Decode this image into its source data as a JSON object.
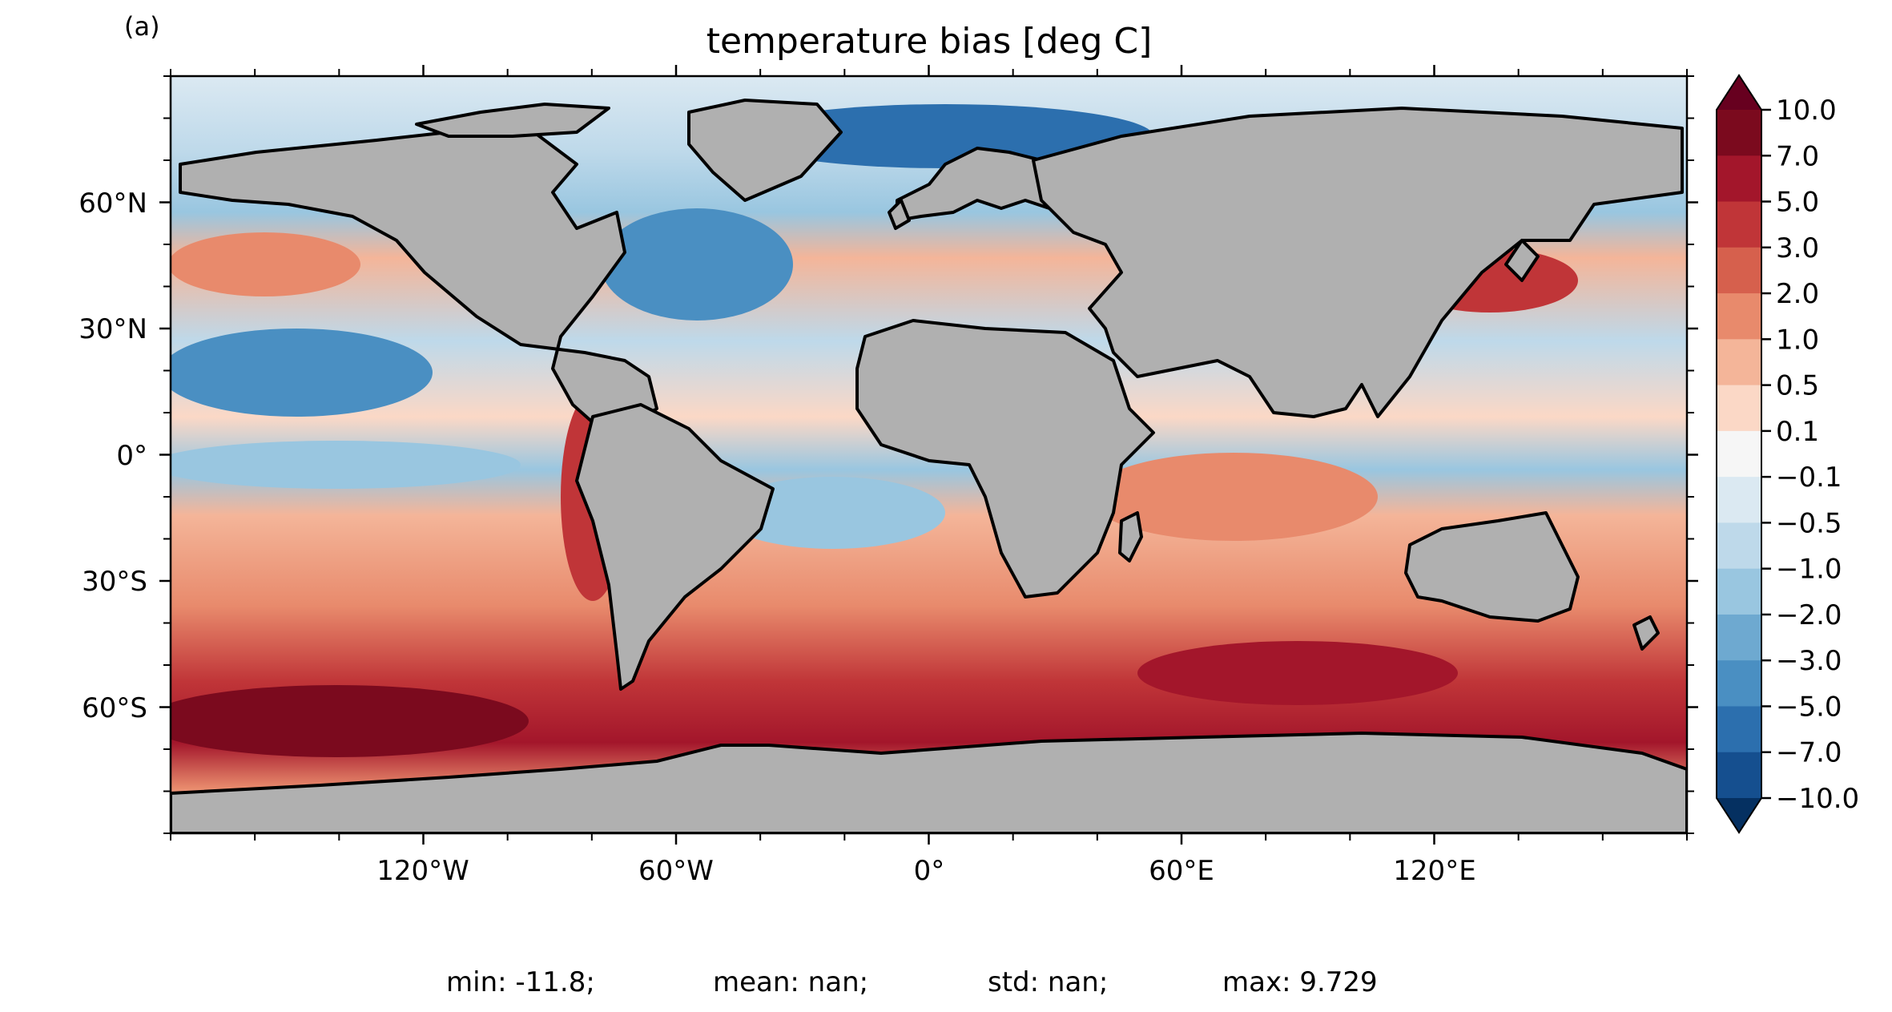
{
  "panel_label": "(a)",
  "title": "temperature bias [deg C]",
  "colors": {
    "ocean_base": "#e8a080",
    "land": "#b0b0b0",
    "ice": "#ffffff",
    "coast": "#000000"
  },
  "axes": {
    "x_ticks": [
      {
        "lon": -120,
        "label": "120°W"
      },
      {
        "lon": -60,
        "label": "60°W"
      },
      {
        "lon": 0,
        "label": "0°"
      },
      {
        "lon": 60,
        "label": "60°E"
      },
      {
        "lon": 120,
        "label": "120°E"
      }
    ],
    "y_ticks": [
      {
        "lat": 60,
        "label": "60°N"
      },
      {
        "lat": 30,
        "label": "30°N"
      },
      {
        "lat": 0,
        "label": "0°"
      },
      {
        "lat": -30,
        "label": "30°S"
      },
      {
        "lat": -60,
        "label": "60°S"
      }
    ],
    "lon_range": [
      -180,
      180
    ],
    "lat_range": [
      -90,
      90
    ]
  },
  "colorbar": {
    "extend": "both",
    "levels": [
      {
        "label": "10.0",
        "color": "#7b0a1e"
      },
      {
        "label": "7.0",
        "color": "#a3162b"
      },
      {
        "label": "5.0",
        "color": "#c03538"
      },
      {
        "label": "3.0",
        "color": "#d6604d"
      },
      {
        "label": "2.0",
        "color": "#e88a6c"
      },
      {
        "label": "1.0",
        "color": "#f4b599"
      },
      {
        "label": "0.5",
        "color": "#fbd8c6"
      },
      {
        "label": "0.1",
        "color": "#f6f6f6"
      },
      {
        "label": "−0.1",
        "color": "#dbe9f2"
      },
      {
        "label": "−0.5",
        "color": "#bed9ea"
      },
      {
        "label": "−1.0",
        "color": "#99c6e0"
      },
      {
        "label": "−2.0",
        "color": "#6ea9d0"
      },
      {
        "label": "−3.0",
        "color": "#4a8fc2"
      },
      {
        "label": "−5.0",
        "color": "#2c6fae"
      },
      {
        "label": "−7.0",
        "color": "#154f8f"
      },
      {
        "label": "−10.0",
        "color": "#0a3161"
      }
    ],
    "over_color": "#67001f",
    "under_color": "#053061"
  },
  "stats": {
    "min": "min: -11.8;",
    "mean": "mean: nan;",
    "std": "std: nan;",
    "max": "max: 9.729"
  }
}
